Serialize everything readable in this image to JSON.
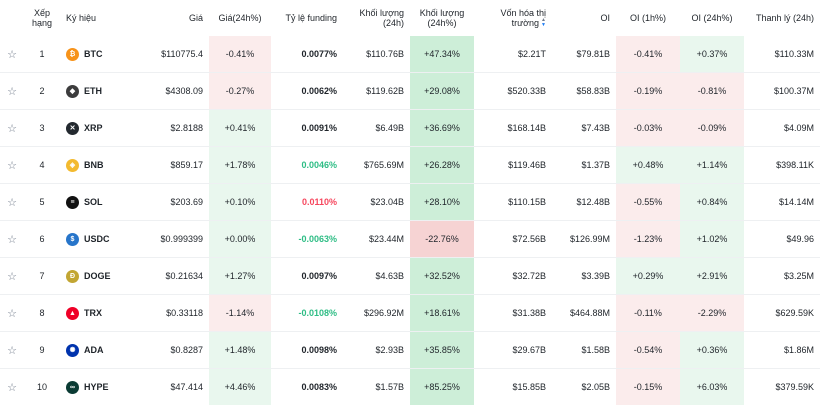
{
  "headers": {
    "rank": "Xếp hạng",
    "symbol": "Ký hiệu",
    "price": "Giá",
    "price_change": "Giá(24h%)",
    "funding": "Tỷ lệ funding",
    "volume": "Khối lượng (24h)",
    "volume_change": "Khối lượng (24h%)",
    "mcap": "Vốn hóa thị trường",
    "oi": "OI",
    "oi_1h": "OI (1h%)",
    "oi_24h": "OI (24h%)",
    "liq": "Thanh lý (24h)"
  },
  "rows": [
    {
      "rank": "1",
      "symbol": "BTC",
      "icon": "btc-icon",
      "color": "#f7931a",
      "glyph": "₿",
      "price": "$110775.4",
      "price_change": "-0.41%",
      "pc_sign": "neg",
      "funding": "0.0077%",
      "f_color": "black",
      "volume": "$110.76B",
      "volume_change": "+47.34%",
      "vc_sign": "pos",
      "mcap": "$2.21T",
      "oi": "$79.81B",
      "oi_1h": "-0.41%",
      "o1_sign": "neg",
      "oi_24h": "+0.37%",
      "o24_sign": "pos",
      "liq": "$110.33M"
    },
    {
      "rank": "2",
      "symbol": "ETH",
      "icon": "eth-icon",
      "color": "#3c3c3d",
      "glyph": "◆",
      "price": "$4308.09",
      "price_change": "-0.27%",
      "pc_sign": "neg",
      "funding": "0.0062%",
      "f_color": "black",
      "volume": "$119.62B",
      "volume_change": "+29.08%",
      "vc_sign": "pos",
      "mcap": "$520.33B",
      "oi": "$58.83B",
      "oi_1h": "-0.19%",
      "o1_sign": "neg",
      "oi_24h": "-0.81%",
      "o24_sign": "neg",
      "liq": "$100.37M"
    },
    {
      "rank": "3",
      "symbol": "XRP",
      "icon": "xrp-icon",
      "color": "#23292f",
      "glyph": "✕",
      "price": "$2.8188",
      "price_change": "+0.41%",
      "pc_sign": "pos",
      "funding": "0.0091%",
      "f_color": "black",
      "volume": "$6.49B",
      "volume_change": "+36.69%",
      "vc_sign": "pos",
      "mcap": "$168.14B",
      "oi": "$7.43B",
      "oi_1h": "-0.03%",
      "o1_sign": "neg",
      "oi_24h": "-0.09%",
      "o24_sign": "neg",
      "liq": "$4.09M"
    },
    {
      "rank": "4",
      "symbol": "BNB",
      "icon": "bnb-icon",
      "color": "#f3ba2f",
      "glyph": "◈",
      "price": "$859.17",
      "price_change": "+1.78%",
      "pc_sign": "pos",
      "funding": "0.0046%",
      "f_color": "green",
      "volume": "$765.69M",
      "volume_change": "+26.28%",
      "vc_sign": "pos",
      "mcap": "$119.46B",
      "oi": "$1.37B",
      "oi_1h": "+0.48%",
      "o1_sign": "pos",
      "oi_24h": "+1.14%",
      "o24_sign": "pos",
      "liq": "$398.11K"
    },
    {
      "rank": "5",
      "symbol": "SOL",
      "icon": "sol-icon",
      "color": "#111111",
      "glyph": "≡",
      "price": "$203.69",
      "price_change": "+0.10%",
      "pc_sign": "pos",
      "funding": "0.0110%",
      "f_color": "red",
      "volume": "$23.04B",
      "volume_change": "+28.10%",
      "vc_sign": "pos",
      "mcap": "$110.15B",
      "oi": "$12.48B",
      "oi_1h": "-0.55%",
      "o1_sign": "neg",
      "oi_24h": "+0.84%",
      "o24_sign": "pos",
      "liq": "$14.14M"
    },
    {
      "rank": "6",
      "symbol": "USDC",
      "icon": "usdc-icon",
      "color": "#2775ca",
      "glyph": "$",
      "price": "$0.999399",
      "price_change": "+0.00%",
      "pc_sign": "pos",
      "funding": "-0.0063%",
      "f_color": "green",
      "volume": "$23.44M",
      "volume_change": "-22.76%",
      "vc_sign": "neg",
      "mcap": "$72.56B",
      "oi": "$126.99M",
      "oi_1h": "-1.23%",
      "o1_sign": "neg",
      "oi_24h": "+1.02%",
      "o24_sign": "pos",
      "liq": "$49.96"
    },
    {
      "rank": "7",
      "symbol": "DOGE",
      "icon": "doge-icon",
      "color": "#c2a633",
      "glyph": "Ð",
      "price": "$0.21634",
      "price_change": "+1.27%",
      "pc_sign": "pos",
      "funding": "0.0097%",
      "f_color": "black",
      "volume": "$4.63B",
      "volume_change": "+32.52%",
      "vc_sign": "pos",
      "mcap": "$32.72B",
      "oi": "$3.39B",
      "oi_1h": "+0.29%",
      "o1_sign": "pos",
      "oi_24h": "+2.91%",
      "o24_sign": "pos",
      "liq": "$3.25M"
    },
    {
      "rank": "8",
      "symbol": "TRX",
      "icon": "trx-icon",
      "color": "#ef0027",
      "glyph": "▲",
      "price": "$0.33118",
      "price_change": "-1.14%",
      "pc_sign": "neg",
      "funding": "-0.0108%",
      "f_color": "green",
      "volume": "$296.92M",
      "volume_change": "+18.61%",
      "vc_sign": "pos",
      "mcap": "$31.38B",
      "oi": "$464.88M",
      "oi_1h": "-0.11%",
      "o1_sign": "neg",
      "oi_24h": "-2.29%",
      "o24_sign": "neg",
      "liq": "$629.59K"
    },
    {
      "rank": "9",
      "symbol": "ADA",
      "icon": "ada-icon",
      "color": "#0033ad",
      "glyph": "✺",
      "price": "$0.8287",
      "price_change": "+1.48%",
      "pc_sign": "pos",
      "funding": "0.0098%",
      "f_color": "black",
      "volume": "$2.93B",
      "volume_change": "+35.85%",
      "vc_sign": "pos",
      "mcap": "$29.67B",
      "oi": "$1.58B",
      "oi_1h": "-0.54%",
      "o1_sign": "neg",
      "oi_24h": "+0.36%",
      "o24_sign": "pos",
      "liq": "$1.86M"
    },
    {
      "rank": "10",
      "symbol": "HYPE",
      "icon": "hype-icon",
      "color": "#0b3b34",
      "glyph": "∞",
      "price": "$47.414",
      "price_change": "+4.46%",
      "pc_sign": "pos",
      "funding": "0.0083%",
      "f_color": "black",
      "volume": "$1.57B",
      "volume_change": "+85.25%",
      "vc_sign": "pos",
      "mcap": "$15.85B",
      "oi": "$2.05B",
      "oi_1h": "-0.15%",
      "o1_sign": "neg",
      "oi_24h": "+6.03%",
      "o24_sign": "pos",
      "liq": "$379.59K"
    }
  ]
}
